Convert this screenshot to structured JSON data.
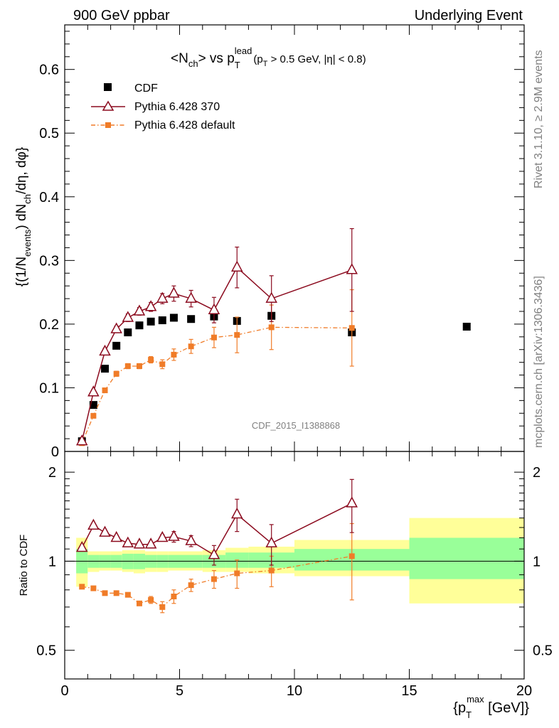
{
  "header": {
    "left": "900 GeV ppbar",
    "right": "Underlying Event"
  },
  "side_labels": {
    "rivet": "Rivet 3.1.10, ≥ 2.9M events",
    "mcplots": "mcplots.cern.ch [arXiv:1306.3436]"
  },
  "watermark": "CDF_2015_I1388868",
  "colors": {
    "cdf": "#000000",
    "pythia370": "#8b0a1e",
    "pythia_default": "#f07c28",
    "band_green": "#99ff99",
    "band_yellow": "#ffff99"
  },
  "chart_data": [
    {
      "type": "scatter",
      "panel": "main",
      "title": {
        "main": "<N",
        "main_sub": "ch",
        "main_rest": "> vs p",
        "var_sub": "T",
        "var_sup": "lead",
        "cut_open": "(p",
        "cut_sub": "T",
        "cut_rest": " > 0.5 GeV, |η| < 0.8)"
      },
      "ylabel": {
        "p1": "{(1/N",
        "p1_sub": "events",
        "p2": ") dN",
        "p2_sub": "ch",
        "p3": "/dη, dφ}"
      },
      "xlim": [
        0,
        20
      ],
      "ylim": [
        0,
        0.67
      ],
      "yticks": [
        0,
        0.1,
        0.2,
        0.3,
        0.4,
        0.5,
        0.6
      ],
      "ytick_labels": [
        "0",
        "0.1",
        "0.2",
        "0.3",
        "0.4",
        "0.5",
        "0.6"
      ],
      "legend": {
        "position": "top-left",
        "entries": [
          "CDF",
          "Pythia 6.428 370",
          "Pythia 6.428 default"
        ]
      },
      "series": [
        {
          "name": "CDF",
          "marker": "square",
          "x": [
            0.75,
            1.25,
            1.75,
            2.25,
            2.75,
            3.25,
            3.75,
            4.25,
            4.75,
            5.5,
            6.5,
            7.5,
            9.0,
            12.5,
            17.5
          ],
          "y": [
            0.016,
            0.073,
            0.13,
            0.166,
            0.187,
            0.198,
            0.204,
            0.206,
            0.21,
            0.208,
            0.212,
            0.205,
            0.213,
            0.187,
            0.196
          ]
        },
        {
          "name": "Pythia 6.428 370",
          "marker": "triangle",
          "x": [
            0.75,
            1.25,
            1.75,
            2.25,
            2.75,
            3.25,
            3.75,
            4.25,
            4.75,
            5.5,
            6.5,
            7.5,
            9.0,
            12.5
          ],
          "y": [
            0.016,
            0.093,
            0.157,
            0.192,
            0.21,
            0.22,
            0.227,
            0.24,
            0.248,
            0.24,
            0.222,
            0.289,
            0.24,
            0.285
          ],
          "err": [
            0.002,
            0.004,
            0.005,
            0.005,
            0.006,
            0.006,
            0.007,
            0.008,
            0.012,
            0.013,
            0.02,
            0.032,
            0.036,
            0.065
          ]
        },
        {
          "name": "Pythia 6.428 default",
          "marker": "small-square",
          "x": [
            0.75,
            1.25,
            1.75,
            2.25,
            2.75,
            3.25,
            3.75,
            4.25,
            4.75,
            5.5,
            6.5,
            7.5,
            9.0,
            12.5
          ],
          "y": [
            0.013,
            0.056,
            0.096,
            0.122,
            0.134,
            0.134,
            0.144,
            0.137,
            0.152,
            0.165,
            0.179,
            0.183,
            0.195,
            0.194
          ],
          "err": [
            0.002,
            0.003,
            0.003,
            0.004,
            0.004,
            0.004,
            0.005,
            0.007,
            0.009,
            0.011,
            0.016,
            0.028,
            0.035,
            0.06
          ]
        }
      ]
    },
    {
      "type": "scatter",
      "panel": "ratio",
      "ylabel": "Ratio to CDF",
      "xlabel": {
        "open": "{p",
        "sub": "T",
        "sup": "max",
        "rest": " [GeV]}"
      },
      "xlim": [
        0,
        20
      ],
      "ylim": [
        0.4,
        2.35
      ],
      "log_y": true,
      "xticks": [
        0,
        5,
        10,
        15,
        20
      ],
      "xtick_labels": [
        "0",
        "5",
        "10",
        "15",
        "20"
      ],
      "yticks": [
        0.5,
        1,
        2
      ],
      "ytick_labels": [
        "0.5",
        "1",
        "2"
      ],
      "bands": {
        "edges": [
          0.5,
          1.0,
          1.5,
          2.0,
          2.5,
          3.0,
          3.5,
          4.0,
          4.5,
          5.0,
          6.0,
          7.0,
          8.0,
          10.0,
          15.0,
          20.0
        ],
        "green_low": [
          0.91,
          0.95,
          0.95,
          0.95,
          0.94,
          0.94,
          0.95,
          0.95,
          0.95,
          0.95,
          0.95,
          0.95,
          0.95,
          0.93,
          0.87
        ],
        "green_high": [
          1.1,
          1.05,
          1.05,
          1.05,
          1.06,
          1.06,
          1.05,
          1.05,
          1.05,
          1.05,
          1.05,
          1.07,
          1.07,
          1.1,
          1.2
        ],
        "yellow_low": [
          0.82,
          0.92,
          0.93,
          0.93,
          0.92,
          0.91,
          0.92,
          0.92,
          0.93,
          0.93,
          0.92,
          0.92,
          0.91,
          0.89,
          0.72
        ],
        "yellow_high": [
          1.2,
          1.08,
          1.08,
          1.08,
          1.09,
          1.09,
          1.08,
          1.08,
          1.08,
          1.08,
          1.09,
          1.11,
          1.12,
          1.18,
          1.4
        ]
      },
      "series": [
        {
          "name": "Pythia 6.428 370",
          "x": [
            0.75,
            1.25,
            1.75,
            2.25,
            2.75,
            3.25,
            3.75,
            4.25,
            4.75,
            5.5,
            6.5,
            7.5,
            9.0,
            12.5
          ],
          "y": [
            1.11,
            1.32,
            1.25,
            1.2,
            1.15,
            1.14,
            1.14,
            1.2,
            1.21,
            1.17,
            1.05,
            1.44,
            1.15,
            1.57
          ],
          "err": [
            0.01,
            0.02,
            0.02,
            0.02,
            0.02,
            0.02,
            0.02,
            0.03,
            0.05,
            0.05,
            0.08,
            0.18,
            0.18,
            0.32
          ]
        },
        {
          "name": "Pythia 6.428 default",
          "x": [
            0.75,
            1.25,
            1.75,
            2.25,
            2.75,
            3.25,
            3.75,
            4.25,
            4.75,
            5.5,
            6.5,
            7.5,
            9.0,
            12.5
          ],
          "y": [
            0.82,
            0.81,
            0.78,
            0.78,
            0.77,
            0.72,
            0.74,
            0.7,
            0.76,
            0.83,
            0.87,
            0.91,
            0.93,
            1.04
          ],
          "err": [
            0.01,
            0.01,
            0.01,
            0.01,
            0.01,
            0.01,
            0.02,
            0.03,
            0.04,
            0.04,
            0.06,
            0.1,
            0.11,
            0.3
          ]
        }
      ]
    }
  ]
}
